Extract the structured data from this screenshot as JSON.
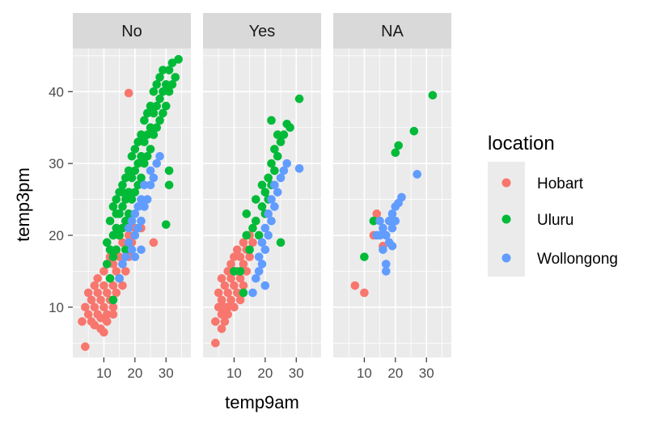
{
  "chart_data": {
    "type": "scatter",
    "xlabel": "temp9am",
    "ylabel": "temp3pm",
    "facets": [
      "No",
      "Yes",
      "NA"
    ],
    "xlim": [
      0,
      38
    ],
    "ylim": [
      3,
      46
    ],
    "xticks": [
      10,
      20,
      30
    ],
    "yticks": [
      10,
      20,
      30,
      40
    ],
    "grid": true,
    "legend": {
      "title": "location",
      "position": "right",
      "entries": [
        {
          "name": "Hobart",
          "color": "#F8766D"
        },
        {
          "name": "Uluru",
          "color": "#00BA38"
        },
        {
          "name": "Wollongong",
          "color": "#619CFF"
        }
      ]
    },
    "series": [
      {
        "name": "Hobart",
        "color": "#F8766D",
        "facets": {
          "No": [
            [
              3,
              8
            ],
            [
              4,
              10
            ],
            [
              4,
              4.5
            ],
            [
              5,
              12
            ],
            [
              5,
              9
            ],
            [
              6,
              11
            ],
            [
              6,
              8
            ],
            [
              7,
              13
            ],
            [
              7,
              10
            ],
            [
              7,
              7.5
            ],
            [
              8,
              12
            ],
            [
              8,
              9
            ],
            [
              8,
              14
            ],
            [
              9,
              11
            ],
            [
              9,
              8.5
            ],
            [
              10,
              13
            ],
            [
              10,
              10
            ],
            [
              10,
              15
            ],
            [
              11,
              12
            ],
            [
              11,
              9
            ],
            [
              11,
              16
            ],
            [
              12,
              14
            ],
            [
              12,
              11
            ],
            [
              12,
              17
            ],
            [
              13,
              13
            ],
            [
              13,
              16
            ],
            [
              13,
              10
            ],
            [
              14,
              15
            ],
            [
              14,
              18
            ],
            [
              14,
              12
            ],
            [
              15,
              14
            ],
            [
              15,
              17
            ],
            [
              15,
              20
            ],
            [
              16,
              16
            ],
            [
              16,
              19
            ],
            [
              16,
              13
            ],
            [
              17,
              18
            ],
            [
              17,
              15
            ],
            [
              18,
              20
            ],
            [
              18,
              17
            ],
            [
              19,
              22
            ],
            [
              19,
              19
            ],
            [
              20,
              21
            ],
            [
              18,
              39.8
            ],
            [
              22,
              21
            ],
            [
              26,
              19
            ],
            [
              9,
              7
            ],
            [
              11,
              8
            ],
            [
              13,
              9
            ],
            [
              10,
              6.5
            ]
          ],
          "Yes": [
            [
              4,
              8
            ],
            [
              4,
              5
            ],
            [
              5,
              10
            ],
            [
              5,
              12
            ],
            [
              6,
              9
            ],
            [
              6,
              11
            ],
            [
              6,
              14
            ],
            [
              7,
              10
            ],
            [
              7,
              13
            ],
            [
              7,
              8
            ],
            [
              8,
              12
            ],
            [
              8,
              15
            ],
            [
              8,
              10
            ],
            [
              9,
              11
            ],
            [
              9,
              14
            ],
            [
              9,
              16
            ],
            [
              10,
              13
            ],
            [
              10,
              17
            ],
            [
              10,
              10
            ],
            [
              11,
              12
            ],
            [
              11,
              15
            ],
            [
              11,
              18
            ],
            [
              12,
              14
            ],
            [
              12,
              17
            ],
            [
              12,
              11
            ],
            [
              13,
              16
            ],
            [
              13,
              13
            ],
            [
              13,
              19
            ],
            [
              14,
              15
            ],
            [
              14,
              18
            ],
            [
              15,
              17
            ],
            [
              15,
              20
            ],
            [
              16,
              19
            ],
            [
              6,
              7
            ],
            [
              8,
              9
            ]
          ],
          "NA": [
            [
              7,
              13
            ],
            [
              10,
              12
            ],
            [
              13,
              20
            ],
            [
              14,
              23
            ],
            [
              16,
              18.5
            ]
          ]
        }
      },
      {
        "name": "Uluru",
        "color": "#00BA38",
        "facets": {
          "No": [
            [
              11,
              16
            ],
            [
              11,
              19
            ],
            [
              12,
              14
            ],
            [
              12,
              18
            ],
            [
              12,
              22
            ],
            [
              13,
              17
            ],
            [
              13,
              20
            ],
            [
              13,
              24
            ],
            [
              14,
              18
            ],
            [
              14,
              21
            ],
            [
              14,
              25
            ],
            [
              15,
              20
            ],
            [
              15,
              23
            ],
            [
              15,
              26
            ],
            [
              16,
              21
            ],
            [
              16,
              24
            ],
            [
              16,
              27
            ],
            [
              17,
              22
            ],
            [
              17,
              25
            ],
            [
              17,
              28
            ],
            [
              18,
              23
            ],
            [
              18,
              26
            ],
            [
              18,
              29
            ],
            [
              19,
              25
            ],
            [
              19,
              28
            ],
            [
              19,
              31
            ],
            [
              20,
              26
            ],
            [
              20,
              29
            ],
            [
              20,
              32
            ],
            [
              21,
              27
            ],
            [
              21,
              30
            ],
            [
              21,
              33
            ],
            [
              22,
              28
            ],
            [
              22,
              31
            ],
            [
              22,
              34
            ],
            [
              23,
              30
            ],
            [
              23,
              33
            ],
            [
              23,
              36
            ],
            [
              24,
              31
            ],
            [
              24,
              34
            ],
            [
              24,
              37
            ],
            [
              25,
              32
            ],
            [
              25,
              35
            ],
            [
              25,
              38
            ],
            [
              26,
              34
            ],
            [
              26,
              37
            ],
            [
              26,
              40
            ],
            [
              27,
              35
            ],
            [
              27,
              38
            ],
            [
              27,
              41
            ],
            [
              28,
              36
            ],
            [
              28,
              39
            ],
            [
              28,
              42
            ],
            [
              29,
              37
            ],
            [
              29,
              40
            ],
            [
              29,
              43
            ],
            [
              30,
              38
            ],
            [
              30,
              41
            ],
            [
              31,
              40
            ],
            [
              31,
              43
            ],
            [
              32,
              41
            ],
            [
              32,
              44
            ],
            [
              33,
              42
            ],
            [
              34,
              44.5
            ],
            [
              30,
              21.5
            ],
            [
              31,
              27
            ],
            [
              31,
              29
            ],
            [
              13,
              11
            ],
            [
              15,
              14
            ],
            [
              17,
              18
            ],
            [
              19,
              22
            ],
            [
              14,
              23
            ],
            [
              16,
              26
            ]
          ],
          "Yes": [
            [
              10,
              15
            ],
            [
              12,
              15
            ],
            [
              13,
              12
            ],
            [
              14,
              20
            ],
            [
              14,
              23
            ],
            [
              15,
              18
            ],
            [
              16,
              21
            ],
            [
              17,
              22
            ],
            [
              17,
              25
            ],
            [
              18,
              20
            ],
            [
              19,
              24
            ],
            [
              19,
              27
            ],
            [
              20,
              23
            ],
            [
              20,
              26
            ],
            [
              21,
              25
            ],
            [
              21,
              28
            ],
            [
              22,
              27
            ],
            [
              22,
              30
            ],
            [
              23,
              29
            ],
            [
              23,
              32
            ],
            [
              24,
              31
            ],
            [
              24,
              34
            ],
            [
              25,
              33
            ],
            [
              26,
              34
            ],
            [
              27,
              35.5
            ],
            [
              22,
              36
            ],
            [
              28,
              35
            ],
            [
              31,
              39
            ],
            [
              25,
              19
            ]
          ],
          "NA": [
            [
              10,
              17
            ],
            [
              13,
              22
            ],
            [
              20,
              31.5
            ],
            [
              21,
              32.5
            ],
            [
              26,
              34.5
            ],
            [
              32,
              39.5
            ]
          ]
        }
      },
      {
        "name": "Wollongong",
        "color": "#619CFF",
        "facets": {
          "No": [
            [
              15,
              14
            ],
            [
              16,
              16
            ],
            [
              17,
              17
            ],
            [
              18,
              19
            ],
            [
              18,
              21
            ],
            [
              19,
              18
            ],
            [
              19,
              22
            ],
            [
              20,
              20
            ],
            [
              20,
              23
            ],
            [
              21,
              21
            ],
            [
              21,
              24
            ],
            [
              22,
              22
            ],
            [
              22,
              25
            ],
            [
              23,
              24
            ],
            [
              23,
              27
            ],
            [
              24,
              25
            ],
            [
              25,
              27
            ],
            [
              25,
              29
            ],
            [
              26,
              28
            ],
            [
              27,
              30
            ],
            [
              28,
              31
            ],
            [
              20,
              17
            ],
            [
              22,
              18
            ]
          ],
          "Yes": [
            [
              16,
              12
            ],
            [
              17,
              14
            ],
            [
              18,
              15
            ],
            [
              18,
              17
            ],
            [
              19,
              16
            ],
            [
              19,
              19
            ],
            [
              20,
              18
            ],
            [
              20,
              21
            ],
            [
              21,
              20
            ],
            [
              21,
              23
            ],
            [
              22,
              22
            ],
            [
              22,
              25
            ],
            [
              23,
              24
            ],
            [
              23,
              27
            ],
            [
              24,
              26
            ],
            [
              25,
              28
            ],
            [
              26,
              29
            ],
            [
              27,
              30
            ],
            [
              31,
              29.3
            ],
            [
              20,
              13
            ]
          ],
          "NA": [
            [
              14,
              20
            ],
            [
              15,
              20
            ],
            [
              16,
              18
            ],
            [
              16,
              21
            ],
            [
              17,
              16
            ],
            [
              17,
              20
            ],
            [
              18,
              22
            ],
            [
              18,
              19
            ],
            [
              19,
              23
            ],
            [
              19,
              21
            ],
            [
              20,
              24
            ],
            [
              20,
              22
            ],
            [
              21,
              24.5
            ],
            [
              22,
              25.3
            ],
            [
              17,
              15
            ],
            [
              19,
              18.5
            ],
            [
              27,
              28.5
            ],
            [
              15,
              22
            ]
          ]
        }
      }
    ]
  }
}
